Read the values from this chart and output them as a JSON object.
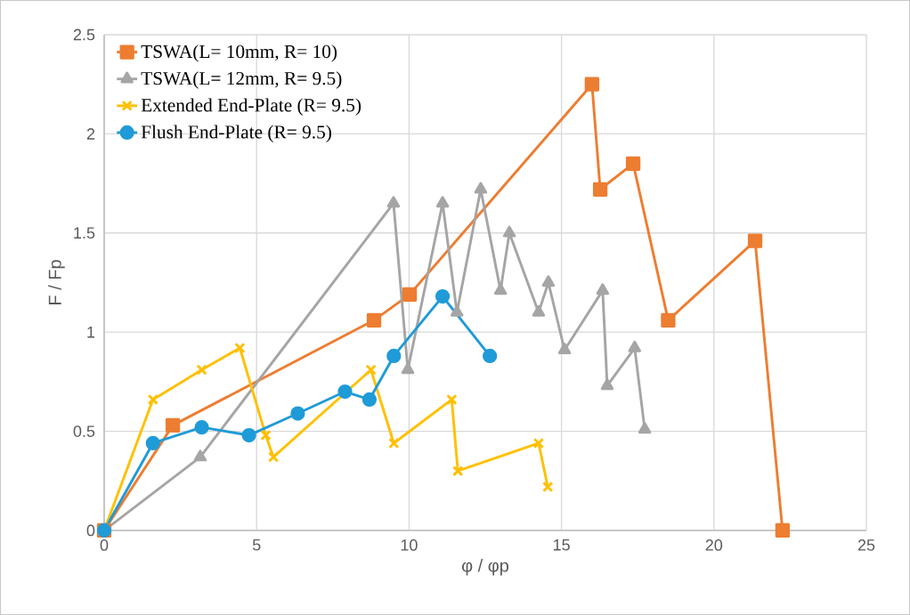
{
  "chart_data": {
    "type": "line",
    "xlabel": "φ / φp",
    "ylabel": "F / Fp",
    "xlim": [
      0,
      25
    ],
    "ylim": [
      0,
      2.5
    ],
    "xticks": [
      0,
      5,
      10,
      15,
      20,
      25
    ],
    "yticks": [
      0,
      0.5,
      1,
      1.5,
      2,
      2.5
    ],
    "grid": true,
    "legend": "top left",
    "line_style": "solid",
    "series": [
      {
        "name": "TSWA(L= 10mm, R= 10)",
        "color": "#ed7d31",
        "marker": "square",
        "x": [
          0,
          2.25,
          8.85,
          10.02,
          16.0,
          16.27,
          17.35,
          18.5,
          21.35,
          22.25
        ],
        "values": [
          0,
          0.53,
          1.06,
          1.19,
          2.25,
          1.72,
          1.85,
          1.06,
          1.46,
          0
        ]
      },
      {
        "name": "TSWA(L= 12mm, R= 9.5)",
        "color": "#a5a5a5",
        "marker": "triangle",
        "x": [
          0,
          3.15,
          9.49,
          9.96,
          11.1,
          11.57,
          12.35,
          13.0,
          13.29,
          14.25,
          14.57,
          15.1,
          16.35,
          16.5,
          17.4,
          17.73
        ],
        "values": [
          0,
          0.37,
          1.65,
          0.81,
          1.65,
          1.1,
          1.72,
          1.21,
          1.5,
          1.1,
          1.25,
          0.91,
          1.21,
          0.73,
          0.92,
          0.51
        ]
      },
      {
        "name": "Extended End-Plate (R= 9.5)",
        "color": "#ffc000",
        "marker": "cross",
        "x": [
          0,
          1.6,
          3.2,
          4.45,
          5.3,
          5.55,
          8.75,
          9.5,
          11.4,
          11.6,
          14.25,
          14.55
        ],
        "values": [
          0,
          0.66,
          0.81,
          0.92,
          0.48,
          0.37,
          0.81,
          0.44,
          0.66,
          0.3,
          0.44,
          0.22
        ]
      },
      {
        "name": "Flush End-Plate (R= 9.5)",
        "color": "#1f9bd7",
        "marker": "circle",
        "x": [
          0,
          1.6,
          3.2,
          4.75,
          6.35,
          7.9,
          8.7,
          9.5,
          11.1,
          12.65
        ],
        "values": [
          0,
          0.44,
          0.52,
          0.48,
          0.59,
          0.7,
          0.66,
          0.88,
          1.18,
          0.88
        ]
      }
    ]
  }
}
